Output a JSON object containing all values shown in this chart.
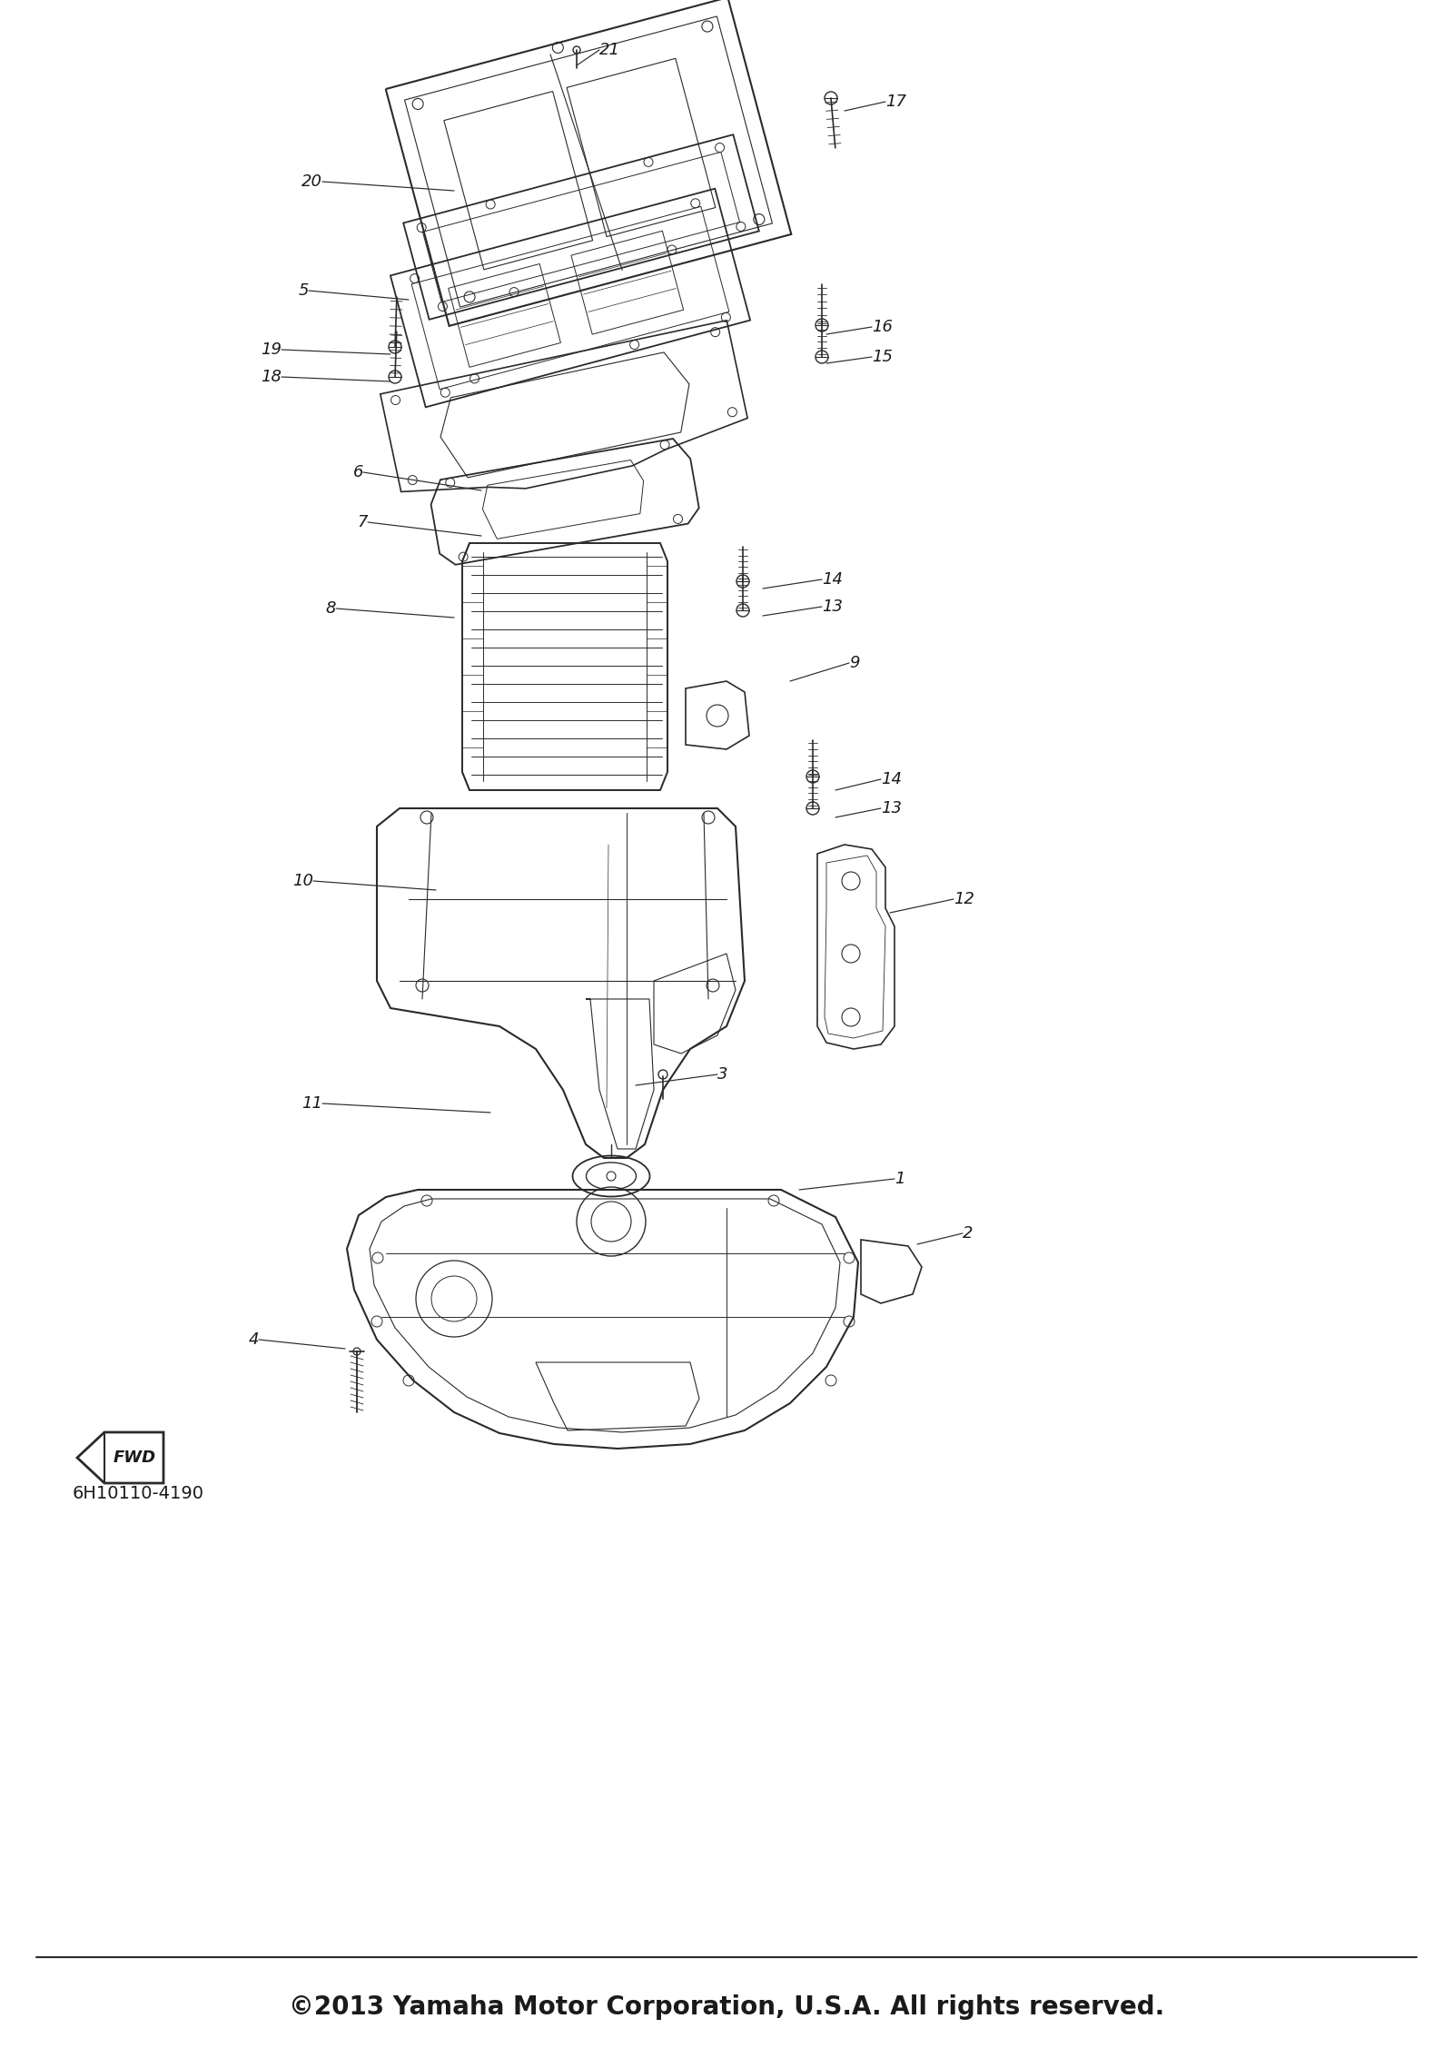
{
  "copyright_text": "©2013 Yamaha Motor Corporation, U.S.A. All rights reserved.",
  "part_number": "6H10110-4190",
  "fwd_label": "FWD",
  "background_color": "#ffffff",
  "line_color": "#2a2a2a",
  "text_color": "#1a1a1a",
  "copyright_fontsize": 20,
  "label_fontsize": 13,
  "part_number_fontsize": 14,
  "fig_width": 16.0,
  "fig_height": 22.77,
  "dpi": 100,
  "labels": [
    [
      "21",
      635,
      72,
      660,
      55,
      "left"
    ],
    [
      "17",
      930,
      122,
      975,
      112,
      "left"
    ],
    [
      "20",
      500,
      210,
      355,
      200,
      "right"
    ],
    [
      "5",
      450,
      330,
      340,
      320,
      "right"
    ],
    [
      "19",
      430,
      390,
      310,
      385,
      "right"
    ],
    [
      "18",
      430,
      420,
      310,
      415,
      "right"
    ],
    [
      "16",
      910,
      368,
      960,
      360,
      "left"
    ],
    [
      "15",
      910,
      400,
      960,
      393,
      "left"
    ],
    [
      "6",
      530,
      540,
      400,
      520,
      "right"
    ],
    [
      "7",
      530,
      590,
      405,
      575,
      "right"
    ],
    [
      "8",
      500,
      680,
      370,
      670,
      "right"
    ],
    [
      "14",
      840,
      648,
      905,
      638,
      "left"
    ],
    [
      "13",
      840,
      678,
      905,
      668,
      "left"
    ],
    [
      "9",
      870,
      750,
      935,
      730,
      "left"
    ],
    [
      "14",
      920,
      870,
      970,
      858,
      "left"
    ],
    [
      "13",
      920,
      900,
      970,
      890,
      "left"
    ],
    [
      "10",
      480,
      980,
      345,
      970,
      "right"
    ],
    [
      "12",
      980,
      1005,
      1050,
      990,
      "left"
    ],
    [
      "3",
      700,
      1195,
      790,
      1183,
      "left"
    ],
    [
      "11",
      540,
      1225,
      355,
      1215,
      "right"
    ],
    [
      "1",
      880,
      1310,
      985,
      1298,
      "left"
    ],
    [
      "2",
      1010,
      1370,
      1060,
      1358,
      "left"
    ],
    [
      "4",
      380,
      1485,
      285,
      1475,
      "right"
    ]
  ]
}
